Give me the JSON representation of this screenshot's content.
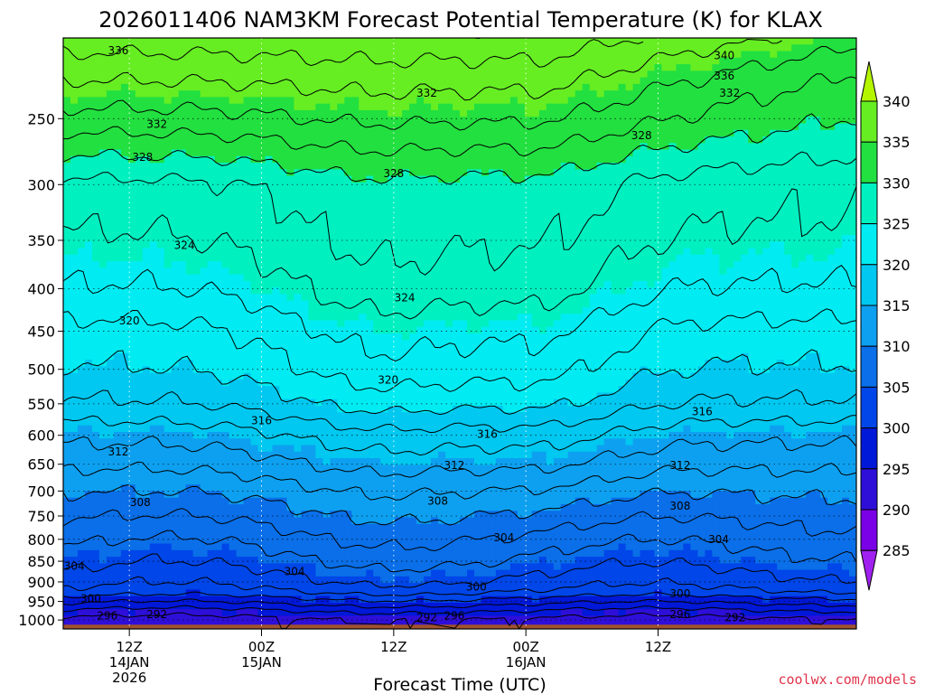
{
  "chart_data": {
    "type": "heatmap",
    "title": "2026011406 NAM3KM Forecast Potential Temperature (K) for KLAX",
    "xlabel": "Forecast Time (UTC)",
    "ylabel": "",
    "credit": "coolwx.com/models",
    "x_hours": [
      0,
      72
    ],
    "x_ticks": [
      {
        "hour": 6,
        "lines": [
          "12Z",
          "14JAN",
          "2026"
        ]
      },
      {
        "hour": 18,
        "lines": [
          "00Z",
          "15JAN"
        ]
      },
      {
        "hour": 30,
        "lines": [
          "12Z"
        ]
      },
      {
        "hour": 42,
        "lines": [
          "00Z",
          "16JAN"
        ]
      },
      {
        "hour": 54,
        "lines": [
          "12Z"
        ]
      }
    ],
    "y_ticks": [
      250,
      300,
      350,
      400,
      450,
      500,
      550,
      600,
      650,
      700,
      750,
      800,
      850,
      900,
      950,
      1000
    ],
    "y_range_hpa": [
      1025,
      200
    ],
    "colorbar": {
      "ticks": [
        340,
        335,
        330,
        325,
        320,
        315,
        310,
        305,
        300,
        295,
        290,
        285
      ],
      "bins": [
        {
          "range": "<285",
          "color": "#a020f0"
        },
        {
          "range": "285-290",
          "color": "#7a00e6"
        },
        {
          "range": "290-295",
          "color": "#2e0fd8"
        },
        {
          "range": "295-300",
          "color": "#0018d8"
        },
        {
          "range": "300-305",
          "color": "#0046e8"
        },
        {
          "range": "305-310",
          "color": "#0a6fe8"
        },
        {
          "range": "310-315",
          "color": "#0ea0f0"
        },
        {
          "range": "315-320",
          "color": "#00c8f0"
        },
        {
          "range": "320-325",
          "color": "#00ecf2"
        },
        {
          "range": "325-330",
          "color": "#00f0c0"
        },
        {
          "range": "330-335",
          "color": "#22e040"
        },
        {
          "range": "335-340",
          "color": "#66ee22"
        },
        {
          "range": ">340",
          "color": "#b4f500"
        }
      ]
    },
    "contour_interval_K": 2,
    "levels_hpa": [
      1000,
      975,
      950,
      925,
      900,
      850,
      800,
      750,
      700,
      650,
      600,
      550,
      500,
      450,
      400,
      350,
      300,
      250,
      200
    ],
    "profile_at_hour_0": [
      293.5,
      296,
      299,
      302,
      303.5,
      305.5,
      307,
      308.5,
      310,
      312,
      314,
      317,
      319,
      320.5,
      323,
      325,
      327,
      333,
      339
    ],
    "contour_labels": [
      {
        "value": "336",
        "x_hour": 5.0,
        "p": 207
      },
      {
        "value": "332",
        "x_hour": 8.5,
        "p": 254
      },
      {
        "value": "328",
        "x_hour": 7.2,
        "p": 278
      },
      {
        "value": "324",
        "x_hour": 11.0,
        "p": 355
      },
      {
        "value": "320",
        "x_hour": 6.0,
        "p": 437
      },
      {
        "value": "316",
        "x_hour": 18.0,
        "p": 576
      },
      {
        "value": "312",
        "x_hour": 5.0,
        "p": 628
      },
      {
        "value": "308",
        "x_hour": 7.0,
        "p": 722
      },
      {
        "value": "304",
        "x_hour": 1.0,
        "p": 862
      },
      {
        "value": "300",
        "x_hour": 2.5,
        "p": 943
      },
      {
        "value": "296",
        "x_hour": 4.0,
        "p": 988
      },
      {
        "value": "292",
        "x_hour": 8.5,
        "p": 985
      },
      {
        "value": "332",
        "x_hour": 33.0,
        "p": 233
      },
      {
        "value": "328",
        "x_hour": 30.0,
        "p": 291
      },
      {
        "value": "324",
        "x_hour": 31.0,
        "p": 410
      },
      {
        "value": "320",
        "x_hour": 29.5,
        "p": 515
      },
      {
        "value": "316",
        "x_hour": 38.5,
        "p": 598
      },
      {
        "value": "312",
        "x_hour": 35.5,
        "p": 652
      },
      {
        "value": "308",
        "x_hour": 34.0,
        "p": 720
      },
      {
        "value": "304",
        "x_hour": 40.0,
        "p": 796
      },
      {
        "value": "304",
        "x_hour": 21.0,
        "p": 875
      },
      {
        "value": "300",
        "x_hour": 37.5,
        "p": 913
      },
      {
        "value": "296",
        "x_hour": 35.5,
        "p": 988
      },
      {
        "value": "292",
        "x_hour": 33.0,
        "p": 993
      },
      {
        "value": "340",
        "x_hour": 60.0,
        "p": 210
      },
      {
        "value": "336",
        "x_hour": 60.0,
        "p": 222
      },
      {
        "value": "332",
        "x_hour": 60.5,
        "p": 233
      },
      {
        "value": "328",
        "x_hour": 52.5,
        "p": 262
      },
      {
        "value": "316",
        "x_hour": 58.0,
        "p": 562
      },
      {
        "value": "312",
        "x_hour": 56.0,
        "p": 652
      },
      {
        "value": "308",
        "x_hour": 56.0,
        "p": 730
      },
      {
        "value": "304",
        "x_hour": 59.5,
        "p": 800
      },
      {
        "value": "300",
        "x_hour": 56.0,
        "p": 930
      },
      {
        "value": "296",
        "x_hour": 56.0,
        "p": 985
      },
      {
        "value": "292",
        "x_hour": 61.0,
        "p": 993
      }
    ],
    "ground_color": "#a0522d"
  }
}
